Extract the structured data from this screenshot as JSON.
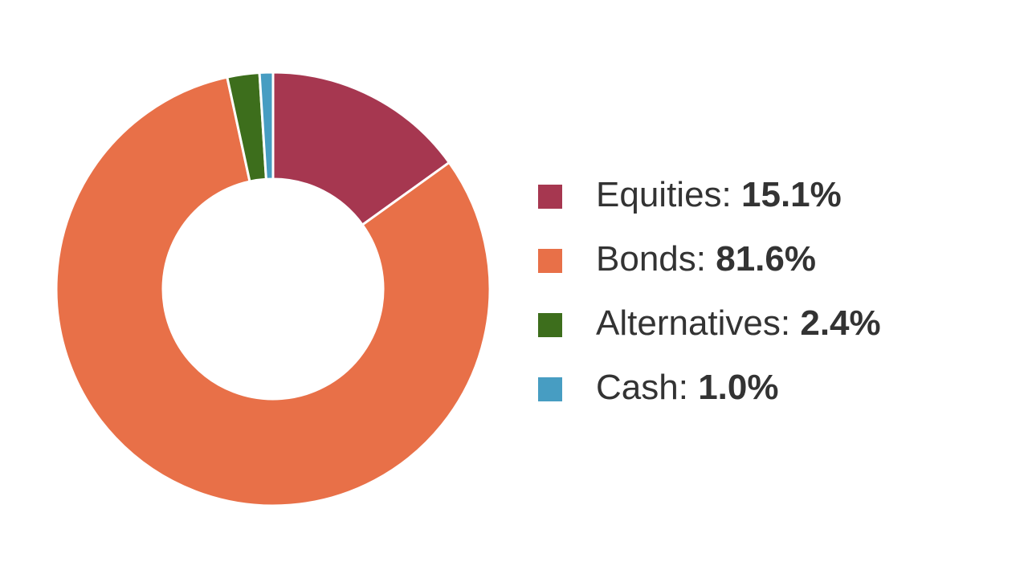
{
  "chart_data": {
    "type": "donut",
    "categories": [
      "Equities:",
      "Bonds:",
      "Alternatives:",
      "Cash:"
    ],
    "values": [
      15.1,
      81.6,
      2.4,
      1.0
    ],
    "value_labels": [
      "15.1%",
      "81.6%",
      "2.4%",
      "1.0%"
    ],
    "colors": [
      "#a63750",
      "#e87048",
      "#3d6e1c",
      "#479dc2"
    ],
    "legend": "right"
  }
}
